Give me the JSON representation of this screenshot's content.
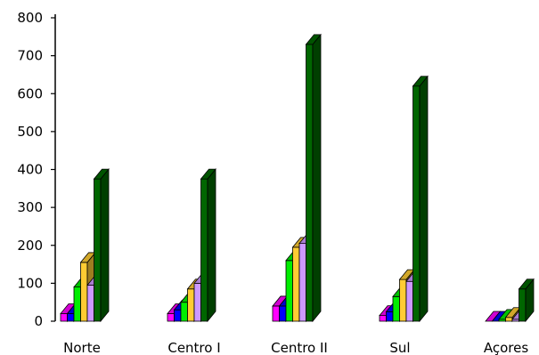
{
  "chart_data": {
    "type": "bar",
    "subtype": "3d-clustered-columns",
    "title": "",
    "xlabel": "",
    "ylabel": "",
    "ylim": [
      0,
      800
    ],
    "yticks": [
      0,
      100,
      200,
      300,
      400,
      500,
      600,
      700,
      800
    ],
    "grid": false,
    "legend": "none",
    "categories": [
      "Norte",
      "Centro I",
      "Centro II",
      "Sul",
      "Açores"
    ],
    "series": [
      {
        "color": "#ff00ff",
        "values": [
          20,
          20,
          40,
          15,
          0
        ]
      },
      {
        "color": "#0000ff",
        "values": [
          20,
          30,
          40,
          25,
          0
        ]
      },
      {
        "color": "#00ee00",
        "values": [
          90,
          50,
          160,
          65,
          5
        ]
      },
      {
        "color": "#ffcc33",
        "values": [
          155,
          85,
          195,
          110,
          10
        ]
      },
      {
        "color": "#cc99ff",
        "values": [
          95,
          100,
          205,
          105,
          5
        ]
      },
      {
        "color": "#006600",
        "values": [
          375,
          375,
          730,
          620,
          85
        ]
      }
    ]
  }
}
